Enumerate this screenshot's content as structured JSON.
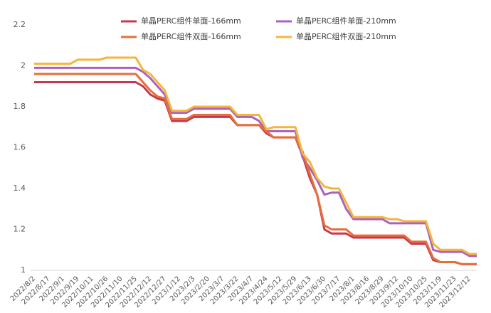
{
  "chart_data": {
    "type": "line",
    "categories": [
      "2022/8/2",
      null,
      "2022/8/17",
      null,
      "2022/9/1",
      null,
      "2022/9/19",
      null,
      "2022/10/11",
      null,
      "2022/10/26",
      null,
      "2022/11/10",
      null,
      "2022/11/25",
      null,
      "2022/12/12",
      null,
      "2022/12/27",
      null,
      "2023/1/12",
      null,
      "2023/2/3",
      null,
      "2023/2/20",
      null,
      "2023/3/7",
      null,
      "2023/3/22",
      null,
      "2023/4/7",
      null,
      "2023/4/24",
      null,
      "2023/5/12",
      null,
      "2023/5/29",
      null,
      "2023/6/13",
      null,
      "2023/6/30",
      null,
      "2023/7/17",
      null,
      "2023/8/1",
      null,
      "2023/8/16",
      null,
      "2023/8/29",
      null,
      "2023/9/12",
      null,
      "2023/10/10",
      null,
      "2023/10/25",
      null,
      "2023/11/9",
      null,
      "2023/11/23",
      null,
      "2023/12/12",
      null
    ],
    "series": [
      {
        "name": "单晶PERC组件单面-166mm",
        "color": "#c8374f",
        "values": [
          1.92,
          1.92,
          1.92,
          1.92,
          1.92,
          1.92,
          1.92,
          1.92,
          1.92,
          1.92,
          1.92,
          1.92,
          1.92,
          1.92,
          1.92,
          1.9,
          1.86,
          1.84,
          1.83,
          1.73,
          1.73,
          1.73,
          1.75,
          1.75,
          1.75,
          1.75,
          1.75,
          1.75,
          1.71,
          1.71,
          1.71,
          1.71,
          1.67,
          1.65,
          1.65,
          1.65,
          1.65,
          1.56,
          1.45,
          1.37,
          1.2,
          1.18,
          1.18,
          1.18,
          1.16,
          1.16,
          1.16,
          1.16,
          1.16,
          1.16,
          1.16,
          1.16,
          1.13,
          1.13,
          1.13,
          1.05,
          1.04,
          1.04,
          1.04,
          1.03,
          1.03,
          1.03
        ]
      },
      {
        "name": "单晶PERC组件单面-210mm",
        "color": "#a962c0",
        "values": [
          1.99,
          1.99,
          1.99,
          1.99,
          1.99,
          1.99,
          1.99,
          1.99,
          1.99,
          1.99,
          1.99,
          1.99,
          1.99,
          1.99,
          1.99,
          1.97,
          1.94,
          1.9,
          1.86,
          1.77,
          1.77,
          1.77,
          1.79,
          1.79,
          1.79,
          1.79,
          1.79,
          1.79,
          1.75,
          1.75,
          1.75,
          1.73,
          1.68,
          1.68,
          1.68,
          1.68,
          1.68,
          1.55,
          1.5,
          1.44,
          1.37,
          1.38,
          1.38,
          1.3,
          1.25,
          1.25,
          1.25,
          1.25,
          1.25,
          1.23,
          1.23,
          1.23,
          1.23,
          1.23,
          1.23,
          1.1,
          1.09,
          1.09,
          1.09,
          1.09,
          1.07,
          1.07
        ]
      },
      {
        "name": "单晶PERC组件双面-166mm",
        "color": "#e2703a",
        "values": [
          1.96,
          1.96,
          1.96,
          1.96,
          1.96,
          1.96,
          1.96,
          1.96,
          1.96,
          1.96,
          1.96,
          1.96,
          1.96,
          1.96,
          1.96,
          1.92,
          1.88,
          1.85,
          1.84,
          1.74,
          1.74,
          1.74,
          1.76,
          1.76,
          1.76,
          1.76,
          1.76,
          1.76,
          1.71,
          1.71,
          1.71,
          1.71,
          1.68,
          1.65,
          1.65,
          1.65,
          1.65,
          1.58,
          1.47,
          1.37,
          1.22,
          1.2,
          1.2,
          1.2,
          1.17,
          1.17,
          1.17,
          1.17,
          1.17,
          1.17,
          1.17,
          1.17,
          1.14,
          1.14,
          1.14,
          1.06,
          1.04,
          1.04,
          1.04,
          1.03,
          1.03,
          1.03
        ]
      },
      {
        "name": "单晶PERC组件双面-210mm",
        "color": "#f5b53a",
        "values": [
          2.01,
          2.01,
          2.01,
          2.01,
          2.01,
          2.01,
          2.03,
          2.03,
          2.03,
          2.03,
          2.04,
          2.04,
          2.04,
          2.04,
          2.04,
          1.98,
          1.96,
          1.92,
          1.88,
          1.78,
          1.78,
          1.78,
          1.8,
          1.8,
          1.8,
          1.8,
          1.8,
          1.8,
          1.76,
          1.76,
          1.76,
          1.76,
          1.69,
          1.7,
          1.7,
          1.7,
          1.7,
          1.57,
          1.53,
          1.45,
          1.41,
          1.4,
          1.4,
          1.33,
          1.26,
          1.26,
          1.26,
          1.26,
          1.26,
          1.25,
          1.25,
          1.24,
          1.24,
          1.24,
          1.24,
          1.13,
          1.1,
          1.1,
          1.1,
          1.1,
          1.08,
          1.08
        ]
      }
    ],
    "ylim": [
      1,
      2.2
    ],
    "yticks": [
      1,
      1.2,
      1.4,
      1.6,
      1.8,
      2,
      2.2
    ]
  }
}
